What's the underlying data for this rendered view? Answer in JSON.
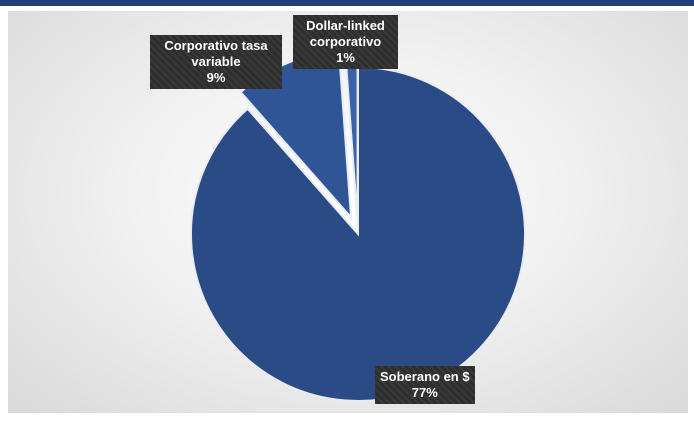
{
  "chart_data": {
    "type": "pie",
    "title": "",
    "slices": [
      {
        "name": "Soberano en $",
        "value": 77,
        "value_label": "77%",
        "color": "#2b4b86"
      },
      {
        "name": "Corporativo tasa variable",
        "name_lines": [
          "Corporativo tasa",
          "variable"
        ],
        "value": 9,
        "value_label": "9%",
        "color": "#2f5597"
      },
      {
        "name": "Dollar-linked corporativo",
        "name_lines": [
          "Dollar-linked",
          "corporativo"
        ],
        "value": 1,
        "value_label": "1%",
        "color": "#3a62a8"
      }
    ],
    "start_angle_deg": 0,
    "direction": "clockwise",
    "label_style": "dark callout boxes",
    "legend": "none"
  }
}
